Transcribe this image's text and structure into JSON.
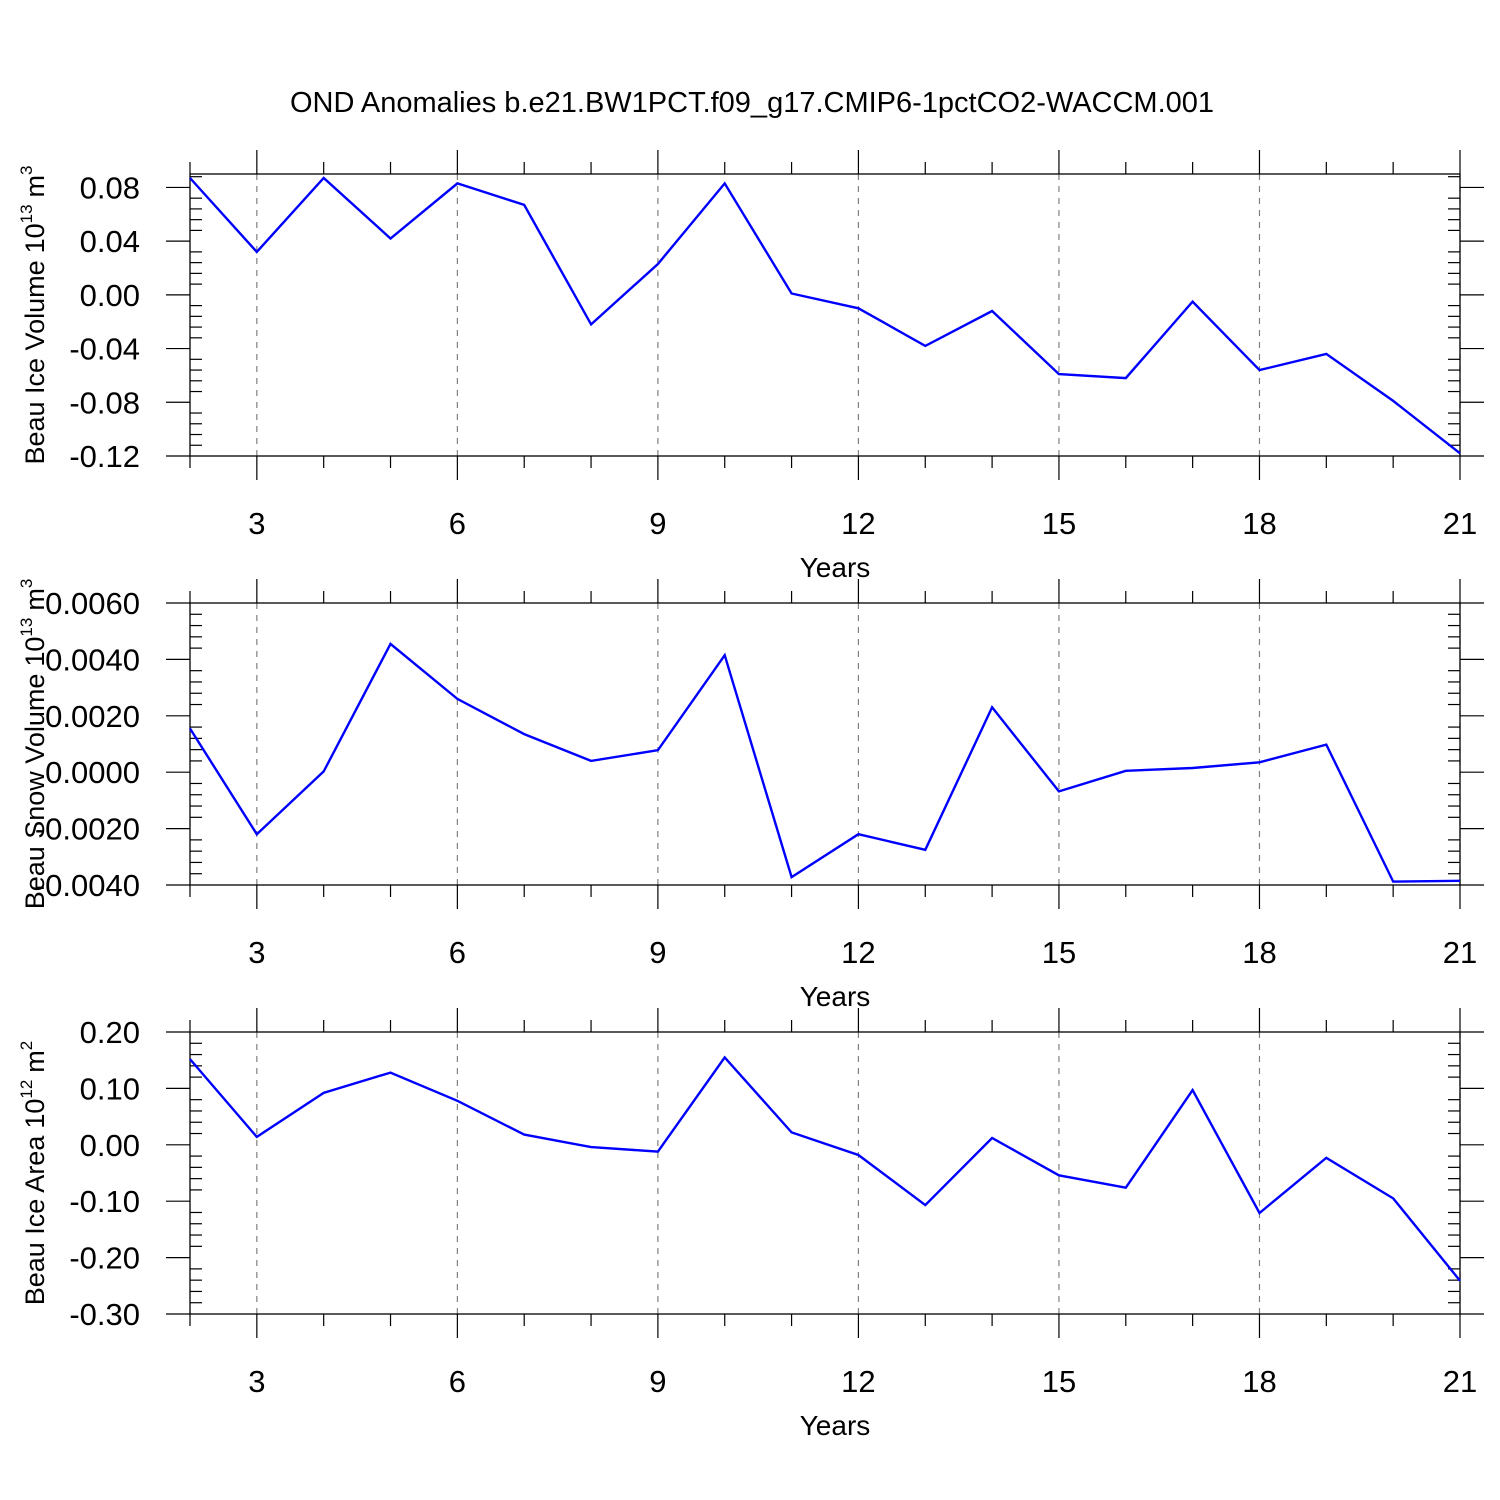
{
  "title": "OND Anomalies b.e21.BW1PCT.f09_g17.CMIP6-1pctCO2-WACCM.001",
  "colors": {
    "line": "#0000ff",
    "grid": "#808080",
    "axes": "#000000"
  },
  "chart_data": [
    {
      "type": "line",
      "ylabel": "Beau Ice Volume",
      "ylabel_power": "10",
      "ylabel_exp": "13",
      "ylabel_unit": "m",
      "ylabel_unit_exp": "3",
      "xlabel": "Years",
      "xlim": [
        2,
        21
      ],
      "ylim": [
        -0.12,
        0.09
      ],
      "xticks": [
        "3",
        "6",
        "9",
        "12",
        "15",
        "18",
        "21"
      ],
      "xtick_values": [
        3,
        6,
        9,
        12,
        15,
        18,
        21
      ],
      "yticks": [
        "0.08",
        "0.04",
        "0.00",
        "-0.04",
        "-0.08",
        "-0.12"
      ],
      "ytick_values": [
        0.08,
        0.04,
        0.0,
        -0.04,
        -0.08,
        -0.12
      ],
      "grid_x": true,
      "x": [
        2,
        3,
        4,
        5,
        6,
        7,
        8,
        9,
        10,
        11,
        12,
        13,
        14,
        15,
        16,
        17,
        18,
        19,
        20,
        21
      ],
      "values": [
        0.087,
        0.032,
        0.087,
        0.042,
        0.083,
        0.067,
        -0.022,
        0.023,
        0.083,
        0.001,
        -0.01,
        -0.038,
        -0.012,
        -0.059,
        -0.062,
        -0.005,
        -0.056,
        -0.044,
        -0.079,
        -0.118
      ]
    },
    {
      "type": "line",
      "ylabel": "Beau Snow Volume",
      "ylabel_power": "10",
      "ylabel_exp": "13",
      "ylabel_unit": "m",
      "ylabel_unit_exp": "3",
      "xlabel": "Years",
      "xlim": [
        2,
        21
      ],
      "ylim": [
        -0.004,
        0.006
      ],
      "xticks": [
        "3",
        "6",
        "9",
        "12",
        "15",
        "18",
        "21"
      ],
      "xtick_values": [
        3,
        6,
        9,
        12,
        15,
        18,
        21
      ],
      "yticks": [
        "0.0060",
        "0.0040",
        "0.0020",
        "0.0000",
        "-0.0020",
        "-0.0040"
      ],
      "ytick_values": [
        0.006,
        0.004,
        0.002,
        0.0,
        -0.002,
        -0.004
      ],
      "grid_x": true,
      "x": [
        2,
        3,
        4,
        5,
        6,
        7,
        8,
        9,
        10,
        11,
        12,
        13,
        14,
        15,
        16,
        17,
        18,
        19,
        20,
        21
      ],
      "values": [
        0.00155,
        -0.0022,
        3e-05,
        0.00455,
        0.0026,
        0.00135,
        0.0004,
        0.00078,
        0.00415,
        -0.00372,
        -0.0022,
        -0.00275,
        0.0023,
        -0.00068,
        5e-05,
        0.00015,
        0.00035,
        0.00098,
        -0.00388,
        -0.00385
      ]
    },
    {
      "type": "line",
      "ylabel": "Beau Ice Area",
      "ylabel_power": "10",
      "ylabel_exp": "12",
      "ylabel_unit": "m",
      "ylabel_unit_exp": "2",
      "xlabel": "Years",
      "xlim": [
        2,
        21
      ],
      "ylim": [
        -0.3,
        0.2
      ],
      "xticks": [
        "3",
        "6",
        "9",
        "12",
        "15",
        "18",
        "21"
      ],
      "xtick_values": [
        3,
        6,
        9,
        12,
        15,
        18,
        21
      ],
      "yticks": [
        "0.20",
        "0.10",
        "0.00",
        "-0.10",
        "-0.20",
        "-0.30"
      ],
      "ytick_values": [
        0.2,
        0.1,
        0.0,
        -0.1,
        -0.2,
        -0.3
      ],
      "grid_x": true,
      "x": [
        2,
        3,
        4,
        5,
        6,
        7,
        8,
        9,
        10,
        11,
        12,
        13,
        14,
        15,
        16,
        17,
        18,
        19,
        20,
        21
      ],
      "values": [
        0.152,
        0.014,
        0.092,
        0.128,
        0.078,
        0.018,
        -0.004,
        -0.012,
        0.155,
        0.022,
        -0.018,
        -0.107,
        0.012,
        -0.054,
        -0.076,
        0.097,
        -0.121,
        -0.023,
        -0.095,
        -0.241
      ]
    }
  ]
}
